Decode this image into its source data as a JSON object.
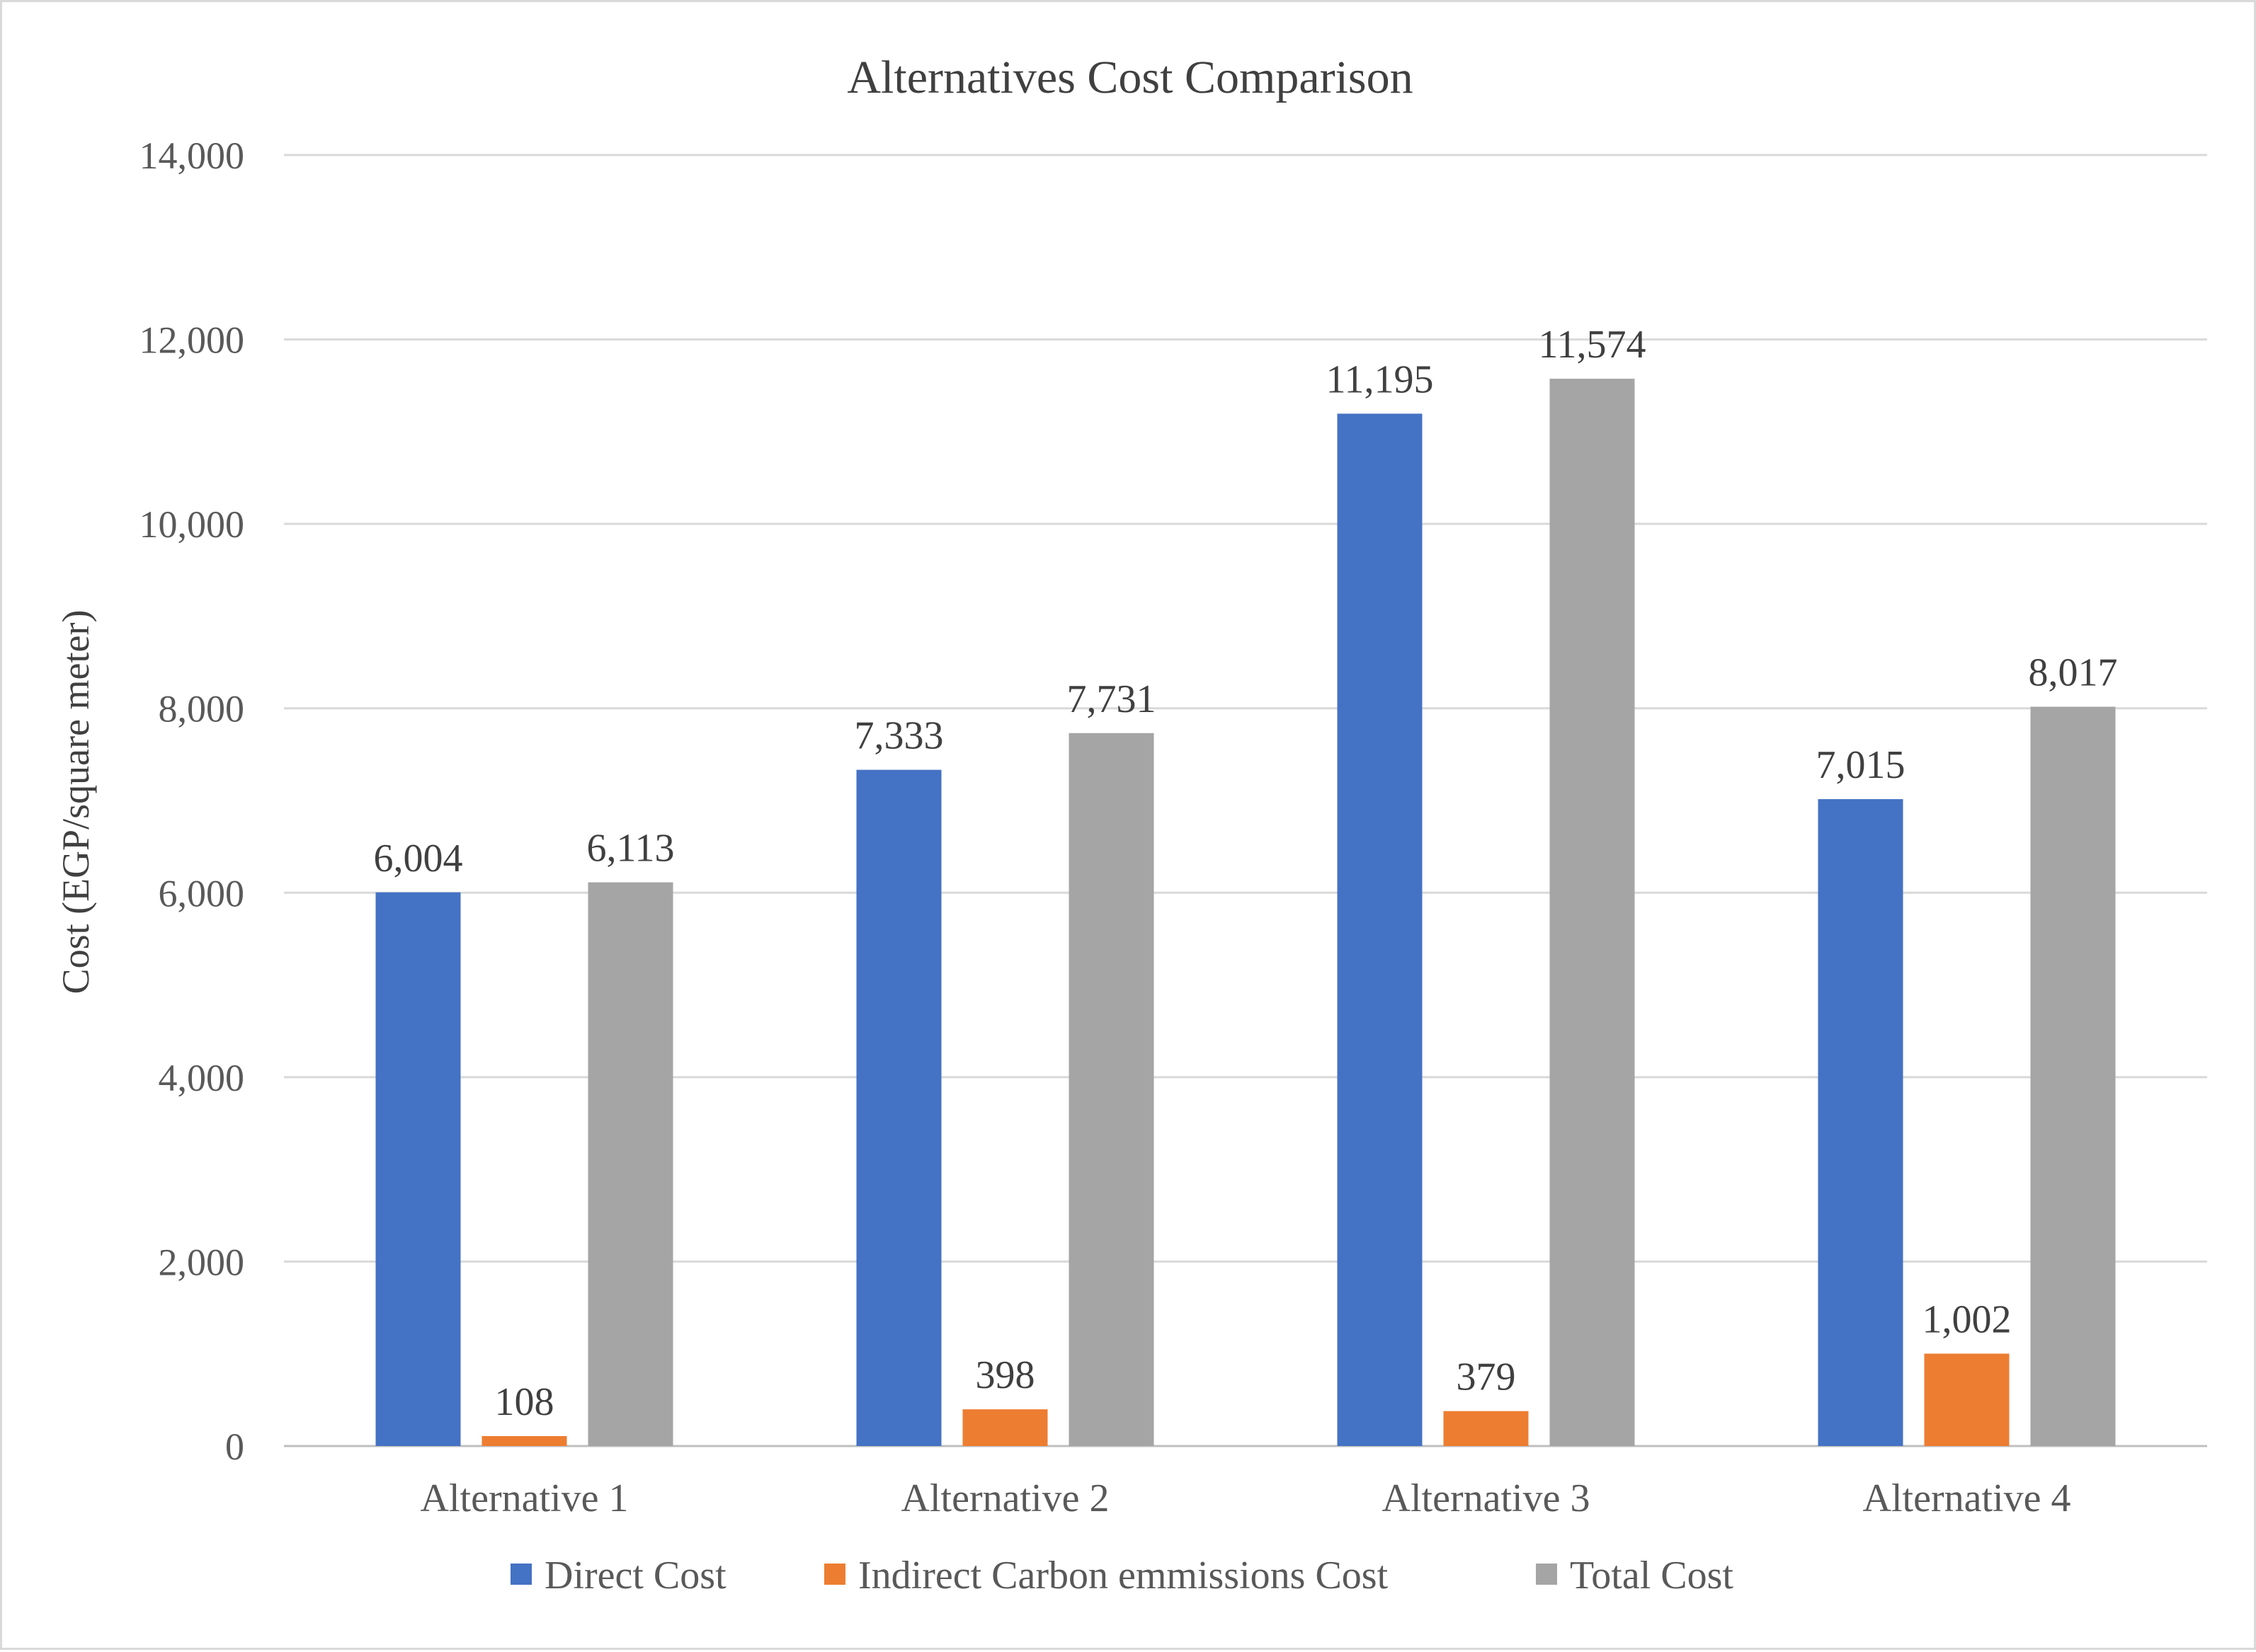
{
  "chart_data": {
    "type": "bar",
    "title": "Alternatives Cost Comparison",
    "xlabel": "",
    "ylabel": "Cost (EGP/square meter)",
    "ylim": [
      0,
      14000
    ],
    "ytick_step": 2000,
    "ytick_labels": [
      "0",
      "2,000",
      "4,000",
      "6,000",
      "8,000",
      "10,000",
      "12,000",
      "14,000"
    ],
    "grid": true,
    "legend_position": "bottom",
    "categories": [
      "Alternative 1",
      "Alternative 2",
      "Alternative 3",
      "Alternative 4"
    ],
    "series": [
      {
        "name": "Direct Cost",
        "color": "#4472c4",
        "values": [
          6004,
          7333,
          11195,
          7015
        ],
        "labels": [
          "6,004",
          "7,333",
          "11,195",
          "7,015"
        ]
      },
      {
        "name": "Indirect Carbon emmissions Cost",
        "color": "#ed7d31",
        "values": [
          108,
          398,
          379,
          1002
        ],
        "labels": [
          "108",
          "398",
          "379",
          "1,002"
        ]
      },
      {
        "name": "Total Cost",
        "color": "#a5a5a5",
        "values": [
          6113,
          7731,
          11574,
          8017
        ],
        "labels": [
          "6,113",
          "7,731",
          "11,574",
          "8,017"
        ]
      }
    ]
  }
}
